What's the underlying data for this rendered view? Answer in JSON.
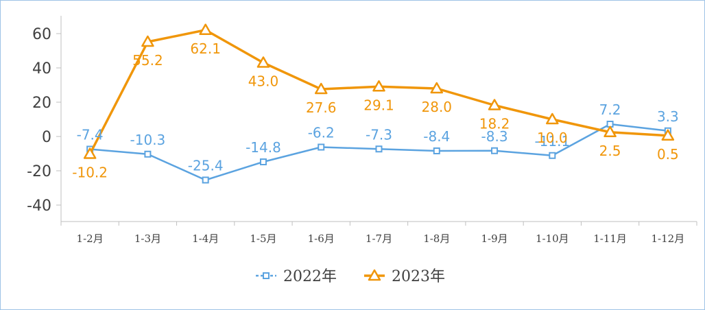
{
  "chart_data": {
    "type": "line",
    "title": "",
    "xlabel": "",
    "ylabel": "",
    "categories": [
      "1-2月",
      "1-3月",
      "1-4月",
      "1-5月",
      "1-6月",
      "1-7月",
      "1-8月",
      "1-9月",
      "1-10月",
      "1-11月",
      "1-12月"
    ],
    "ylim": [
      -40,
      60
    ],
    "yticks": [
      60,
      40,
      20,
      0,
      -20,
      -40
    ],
    "ytick_labels": [
      "60",
      "40",
      "20",
      "0",
      "-20",
      "-40"
    ],
    "grid": false,
    "legend_position": "bottom",
    "series": [
      {
        "name": "2022年",
        "color": "#5ba3e0",
        "marker": "square",
        "values": [
          -7.4,
          -10.3,
          -25.4,
          -14.8,
          -6.2,
          -7.3,
          -8.4,
          -8.3,
          -11.1,
          7.2,
          3.3
        ],
        "labels": [
          "-7.4",
          "-10.3",
          "-25.4",
          "-14.8",
          "-6.2",
          "-7.3",
          "-8.4",
          "-8.3",
          "-11.1",
          "7.2",
          "3.3"
        ]
      },
      {
        "name": "2023年",
        "color": "#f0960a",
        "marker": "triangle",
        "values": [
          -10.2,
          55.2,
          62.1,
          43.0,
          27.6,
          29.1,
          28.0,
          18.2,
          10.0,
          2.5,
          0.5
        ],
        "labels": [
          "-10.2",
          "55.2",
          "62.1",
          "43.0",
          "27.6",
          "29.1",
          "28.0",
          "18.2",
          "10.0",
          "2.5",
          "0.5"
        ]
      }
    ]
  }
}
